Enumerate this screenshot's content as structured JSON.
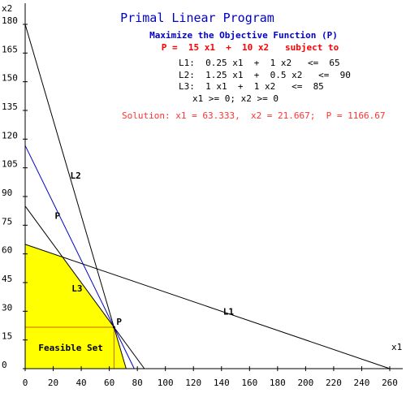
{
  "title": "Primal Linear Program",
  "subtitle": "Maximize the Objective Function (P)",
  "objective": "P =  15 x1  +  10 x2   subject to",
  "constraints": [
    "L1:  0.25 x1  +  1 x2   <=  65",
    "L2:  1.25 x1  +  0.5 x2   <=  90",
    "L3:  1 x1  +  1 x2   <=  85",
    "x1 >= 0; x2 >= 0"
  ],
  "solution": "Solution: x1 = 63.333,  x2 = 21.667;  P = 1166.67",
  "colors": {
    "title": "#0000cc",
    "objective": "#ff0000",
    "solution": "#ff3333",
    "feasible_fill": "#ffff00",
    "objective_line": "#0000cc",
    "constraint_line": "#000000",
    "guide_line": "#cc6600"
  },
  "chart_data": {
    "type": "line",
    "xlabel": "x1",
    "ylabel": "x2",
    "xlim": [
      0,
      260
    ],
    "ylim": [
      0,
      180
    ],
    "x_ticks": [
      0,
      20,
      40,
      60,
      80,
      100,
      120,
      140,
      160,
      180,
      200,
      220,
      240,
      260
    ],
    "y_ticks": [
      0,
      15,
      30,
      45,
      60,
      75,
      90,
      105,
      120,
      135,
      150,
      165,
      180
    ],
    "grid": false,
    "lines": [
      {
        "label": "L1",
        "points": [
          [
            0,
            65
          ],
          [
            260,
            0
          ]
        ],
        "label_at": [
          140,
          30
        ]
      },
      {
        "label": "L2",
        "points": [
          [
            0,
            180
          ],
          [
            72,
            0
          ]
        ],
        "label_at": [
          31,
          101
        ]
      },
      {
        "label": "L3",
        "points": [
          [
            0,
            85
          ],
          [
            85,
            0
          ]
        ],
        "label_at": [
          32,
          42
        ]
      },
      {
        "label": "P",
        "points": [
          [
            0,
            116.667
          ],
          [
            77.778,
            0
          ]
        ],
        "label_at": [
          20,
          80
        ]
      }
    ],
    "feasible_set": {
      "label": "Feasible Set",
      "vertices": [
        [
          0,
          0
        ],
        [
          0,
          65
        ],
        [
          26.667,
          58.333
        ],
        [
          63.333,
          21.667
        ],
        [
          72,
          0
        ]
      ]
    },
    "optimum": {
      "label": "P",
      "x": 63.333,
      "y": 21.667
    }
  }
}
